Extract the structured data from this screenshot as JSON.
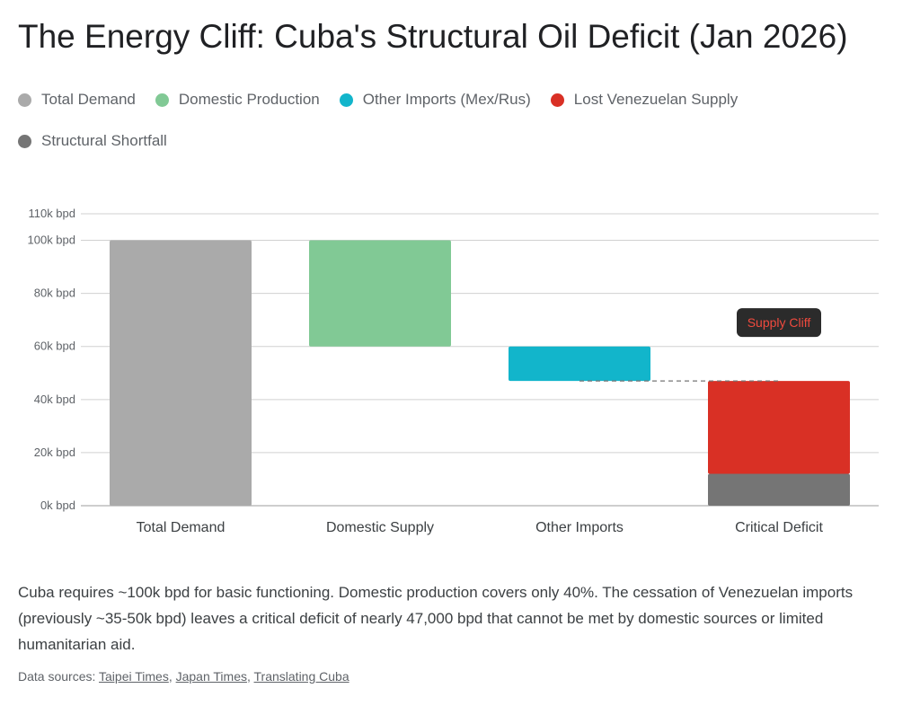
{
  "title": "The Energy Cliff: Cuba's Structural Oil Deficit (Jan 2026)",
  "legend": [
    {
      "label": "Total Demand",
      "color": "#aaaaaa"
    },
    {
      "label": "Domestic Production",
      "color": "#81c995"
    },
    {
      "label": "Other Imports (Mex/Rus)",
      "color": "#12b5cb"
    },
    {
      "label": "Lost Venezuelan Supply",
      "color": "#d93025"
    },
    {
      "label": "Structural Shortfall",
      "color": "#757575"
    }
  ],
  "chart_data": {
    "type": "bar",
    "subtype": "waterfall",
    "categories": [
      "Total Demand",
      "Domestic Supply",
      "Other Imports",
      "Critical Deficit"
    ],
    "unit": "k bpd",
    "ylim": [
      0,
      110
    ],
    "yticks": [
      {
        "value": 0,
        "label": "0k bpd"
      },
      {
        "value": 20,
        "label": "20k bpd"
      },
      {
        "value": 40,
        "label": "40k bpd"
      },
      {
        "value": 60,
        "label": "60k bpd"
      },
      {
        "value": 80,
        "label": "80k bpd"
      },
      {
        "value": 100,
        "label": "100k bpd"
      },
      {
        "value": 110,
        "label": "110k bpd"
      }
    ],
    "grid": true,
    "segments": [
      {
        "category": "Total Demand",
        "series": "Total Demand",
        "from": 0,
        "to": 100,
        "color": "#aaaaaa"
      },
      {
        "category": "Domestic Supply",
        "series": "Domestic Production",
        "from": 60,
        "to": 100,
        "color": "#81c995"
      },
      {
        "category": "Other Imports",
        "series": "Other Imports (Mex/Rus)",
        "from": 47,
        "to": 60,
        "color": "#12b5cb"
      },
      {
        "category": "Critical Deficit",
        "series": "Lost Venezuelan Supply",
        "from": 12,
        "to": 47,
        "color": "#d93025"
      },
      {
        "category": "Critical Deficit",
        "series": "Structural Shortfall",
        "from": 0,
        "to": 12,
        "color": "#757575"
      }
    ],
    "reference_line": {
      "value": 47,
      "from_category": "Other Imports",
      "to_category": "Critical Deficit",
      "style": "dashed"
    },
    "annotation": {
      "text": "Supply Cliff",
      "category": "Critical Deficit",
      "value": 69,
      "text_color": "#f04a3e",
      "background": "#2b2b2b"
    }
  },
  "description": "Cuba requires ~100k bpd for basic functioning. Domestic production covers only 40%. The cessation of Venezuelan imports (previously ~35-50k bpd) leaves a critical deficit of nearly 47,000 bpd that cannot be met by domestic sources or limited humanitarian aid.",
  "sources": {
    "prefix": "Data sources: ",
    "links": [
      {
        "label": "Taipei Times"
      },
      {
        "label": "Japan Times"
      },
      {
        "label": "Translating Cuba"
      }
    ],
    "separator": ", "
  }
}
